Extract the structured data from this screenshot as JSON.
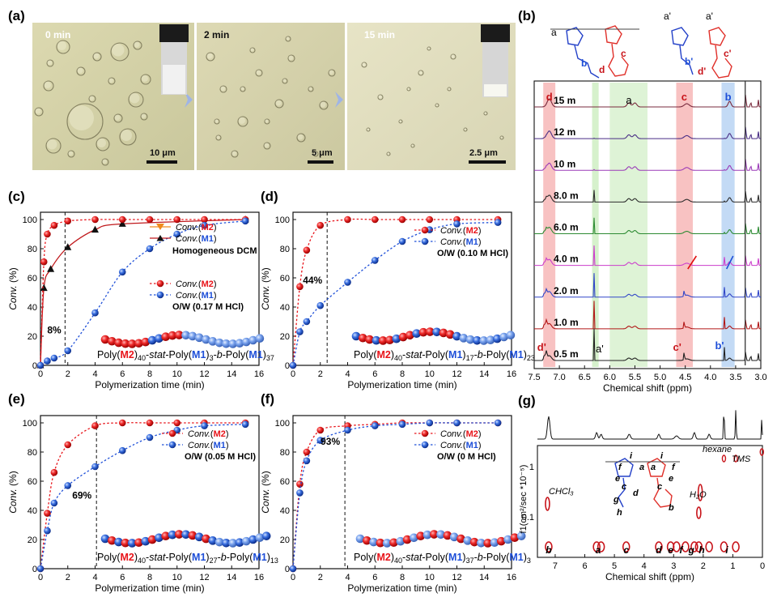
{
  "labels": {
    "panel_a": "(a)",
    "panel_b": "(b)",
    "panel_c": "(c)",
    "panel_d": "(d)",
    "panel_e": "(e)",
    "panel_f": "(f)",
    "panel_g": "(g)"
  },
  "micrographs": [
    {
      "time": "0 min",
      "scale": "10 μm"
    },
    {
      "time": "2 min",
      "scale": "5 μm"
    },
    {
      "time": "15 min",
      "scale": "2.5 μm"
    }
  ],
  "colors": {
    "m2": "#e8141a",
    "m1": "#1e4fd8",
    "m1_light": "#6f9ae6",
    "homog": "#c0191c",
    "orange": "#f08a1c"
  },
  "chart_data": [
    {
      "type": "scatter",
      "id": "c",
      "xlabel": "Polymerization time (min)",
      "ylabel": "Conv. (%)",
      "xlim": [
        0,
        16
      ],
      "ylim": [
        0,
        105
      ],
      "xticks": [
        0,
        2,
        4,
        6,
        8,
        10,
        12,
        14,
        16
      ],
      "yticks": [
        0,
        20,
        40,
        60,
        80,
        100
      ],
      "series": [
        {
          "name": "Conv.(M2)",
          "x": [
            0,
            0.25,
            0.5,
            1,
            2,
            4,
            6,
            8,
            10,
            12,
            15
          ],
          "y": [
            0,
            71,
            90,
            96,
            99,
            100,
            100,
            100,
            100,
            100,
            100
          ]
        },
        {
          "name": "Conv.(M1)",
          "x": [
            0,
            0.5,
            1,
            2,
            4,
            6,
            8,
            10,
            12,
            15
          ],
          "y": [
            0,
            3,
            5,
            10,
            36,
            64,
            80,
            90,
            96,
            99
          ]
        },
        {
          "name": "Conv.(M2)",
          "x": [
            0,
            0.25,
            0.75,
            2,
            4,
            6,
            15
          ],
          "y": [
            0,
            53,
            66,
            81,
            93,
            97,
            100
          ]
        },
        {
          "name": "Conv.(M1)",
          "x": [
            0,
            0.25,
            0.75,
            2,
            4,
            6,
            15
          ],
          "y": [
            0,
            53,
            66,
            81,
            93,
            97,
            100
          ]
        }
      ],
      "legend_homog": [
        "Conv.(M2)",
        "Conv.(M1)",
        "Homogeneous DCM"
      ],
      "legend_ow": [
        "Conv.(M2)",
        "Conv.(M1)",
        "O/W (0.17 M HCl)"
      ],
      "annotation": "8%",
      "marker_x": 1.8,
      "polymer": {
        "prefix": "Poly(",
        "m2": "M2",
        "seg1": ")40-",
        "stat": "stat",
        "seg2": "-Poly(",
        "m1a": "M1",
        "seg3": ")3-",
        "b": "b",
        "seg4": "-Poly(",
        "m1b": "M1",
        "seg5": ")37"
      },
      "chain": "mixed_short"
    },
    {
      "type": "scatter",
      "id": "d",
      "xlabel": "Polymerization time (min)",
      "ylabel": "Conv. (%)",
      "xlim": [
        0,
        16
      ],
      "ylim": [
        0,
        105
      ],
      "xticks": [
        0,
        2,
        4,
        6,
        8,
        10,
        12,
        14,
        16
      ],
      "yticks": [
        0,
        20,
        40,
        60,
        80,
        100
      ],
      "series": [
        {
          "name": "Conv.(M2)",
          "x": [
            0,
            0.5,
            1,
            2,
            4,
            6,
            8,
            10,
            12,
            15
          ],
          "y": [
            0,
            54,
            79,
            96,
            100,
            100,
            100,
            100,
            100,
            100
          ]
        },
        {
          "name": "Conv.(M1)",
          "x": [
            0,
            0.5,
            1,
            2,
            4,
            6,
            8,
            10,
            12,
            15
          ],
          "y": [
            0,
            23,
            30,
            41,
            57,
            72,
            85,
            93,
            97,
            98
          ]
        }
      ],
      "legend_ow": [
        "Conv.(M2)",
        "Conv.(M1)",
        "O/W (0.10 M HCl)"
      ],
      "annotation": "44%",
      "marker_x": 2.5,
      "polymer": {
        "prefix": "Poly(",
        "m2": "M2",
        "seg1": ")40-",
        "stat": "stat",
        "seg2": "-Poly(",
        "m1a": "M1",
        "seg3": ")17-",
        "b": "b",
        "seg4": "-Poly(",
        "m1b": "M1",
        "seg5": ")23"
      }
    },
    {
      "type": "scatter",
      "id": "e",
      "xlabel": "Polymerization time (min)",
      "ylabel": "Conv. (%)",
      "xlim": [
        0,
        16
      ],
      "ylim": [
        0,
        105
      ],
      "xticks": [
        0,
        2,
        4,
        6,
        8,
        10,
        12,
        14,
        16
      ],
      "yticks": [
        0,
        20,
        40,
        60,
        80,
        100
      ],
      "series": [
        {
          "name": "Conv.(M2)",
          "x": [
            0,
            0.5,
            1,
            2,
            4,
            6,
            8,
            10,
            12,
            15
          ],
          "y": [
            0,
            38,
            66,
            85,
            98,
            100,
            100,
            100,
            100,
            100
          ]
        },
        {
          "name": "Conv.(M1)",
          "x": [
            0,
            0.5,
            1,
            2,
            4,
            6,
            8,
            10,
            12,
            15
          ],
          "y": [
            0,
            26,
            45,
            57,
            70,
            81,
            90,
            95,
            98,
            99
          ]
        }
      ],
      "legend_ow": [
        "Conv.(M2)",
        "Conv.(M1)",
        "O/W (0.05 M HCl)"
      ],
      "annotation": "69%",
      "marker_x": 4.1,
      "polymer": {
        "prefix": "Poly(",
        "m2": "M2",
        "seg1": ")40-",
        "stat": "stat",
        "seg2": "-Poly(",
        "m1a": "M1",
        "seg3": ")27-",
        "b": "b",
        "seg4": "-Poly(",
        "m1b": "M1",
        "seg5": ")13"
      }
    },
    {
      "type": "scatter",
      "id": "f",
      "xlabel": "Polymerization time (min)",
      "ylabel": "Conv. (%)",
      "xlim": [
        0,
        16
      ],
      "ylim": [
        0,
        105
      ],
      "xticks": [
        0,
        2,
        4,
        6,
        8,
        10,
        12,
        14,
        16
      ],
      "yticks": [
        0,
        20,
        40,
        60,
        80,
        100
      ],
      "series": [
        {
          "name": "Conv.(M2)",
          "x": [
            0,
            0.5,
            1,
            2,
            4,
            6,
            8,
            10,
            12,
            15
          ],
          "y": [
            0,
            58,
            80,
            95,
            98,
            99,
            100,
            100,
            100,
            100
          ]
        },
        {
          "name": "Conv.(M1)",
          "x": [
            0,
            0.5,
            1,
            2,
            4,
            6,
            8,
            10,
            12,
            15
          ],
          "y": [
            0,
            52,
            74,
            88,
            95,
            98,
            99,
            100,
            100,
            100
          ]
        }
      ],
      "legend_ow": [
        "Conv.(M2)",
        "Conv.(M1)",
        "O/W (0 M HCl)"
      ],
      "annotation": "93%",
      "marker_x": 3.8,
      "polymer": {
        "prefix": "Poly(",
        "m2": "M2",
        "seg1": ")40-",
        "stat": "stat",
        "seg2": "-Poly(",
        "m1a": "M1",
        "seg3": ")37-",
        "b": "b",
        "seg4": "-Poly(",
        "m1b": "M1",
        "seg5": ")3"
      }
    }
  ],
  "nmr_b": {
    "xlabel": "Chemical shift (ppm)",
    "xlim": [
      7.5,
      3.0
    ],
    "xticks": [
      7.5,
      7.0,
      6.5,
      6.0,
      5.5,
      5.0,
      4.5,
      4.0,
      3.5,
      3.0
    ],
    "traces": [
      "15 m",
      "12 m",
      "10 m",
      "8.0 m",
      "6.0 m",
      "4.0 m",
      "2.0 m",
      "1.0 m",
      "0.5 m"
    ],
    "trace_colors": [
      "#7a2b3e",
      "#4a2f86",
      "#9b3bb8",
      "#2c2c2c",
      "#2d8b33",
      "#cc3fcc",
      "#3146c8",
      "#b21818",
      "#222222"
    ],
    "peak_labels": {
      "d": "d",
      "a": "a",
      "c": "c",
      "b": "b",
      "d_prime": "d'",
      "a_prime": "a'",
      "c_prime": "c'",
      "b_prime": "b'"
    },
    "struct_labels": {
      "a": "a",
      "b": "b",
      "c": "c",
      "d": "d",
      "a_prime": "a'",
      "b_prime": "b'",
      "c_prime": "c'",
      "d_prime": "d'"
    }
  },
  "dosy_g": {
    "xlabel": "Chemical shift (ppm)",
    "ylabel": "f1(cm²/sec *10⁻⁵)",
    "xticks": [
      7,
      6,
      5,
      4,
      3,
      2,
      1,
      0
    ],
    "yticks": [
      "1",
      "0.1"
    ],
    "labels": {
      "hexane": "hexane",
      "tms": "TMS",
      "h2o": "H₂O",
      "chcl3": "CHCl₃"
    },
    "peak_letters": [
      "b",
      "a",
      "c",
      "d",
      "e",
      "f",
      "g",
      "h",
      "i"
    ],
    "struct_labels": [
      "i",
      "i",
      "a",
      "a",
      "f",
      "f",
      "e",
      "e",
      "c",
      "c",
      "d",
      "g",
      "b",
      "h"
    ]
  }
}
